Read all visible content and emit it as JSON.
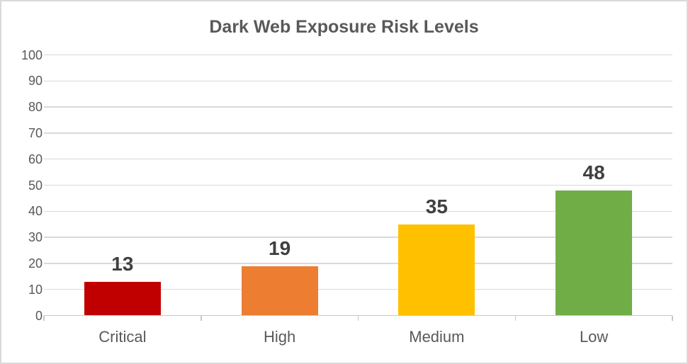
{
  "window": {
    "background": "#ffffff",
    "border_color": "#d9d9d9"
  },
  "chart_data": {
    "type": "bar",
    "title": "Dark Web Exposure Risk Levels",
    "categories": [
      "Critical",
      "High",
      "Medium",
      "Low"
    ],
    "values": [
      13,
      19,
      35,
      48
    ],
    "data_labels": [
      "13",
      "19",
      "35",
      "48"
    ],
    "bar_colors": [
      "#C00000",
      "#ED7D31",
      "#FFC000",
      "#70AD47"
    ],
    "xlabel": "",
    "ylabel": "",
    "ylim": [
      0,
      100
    ],
    "yticks": [
      0,
      10,
      20,
      30,
      40,
      50,
      60,
      70,
      80,
      90,
      100
    ],
    "grid": true,
    "legend_position": "none",
    "colors": {
      "title_text": "#595959",
      "data_label_text": "#404040",
      "axis_tick_text": "#595959",
      "gridline": "#d9d9d9",
      "axis_line": "#c8c8c8"
    }
  }
}
